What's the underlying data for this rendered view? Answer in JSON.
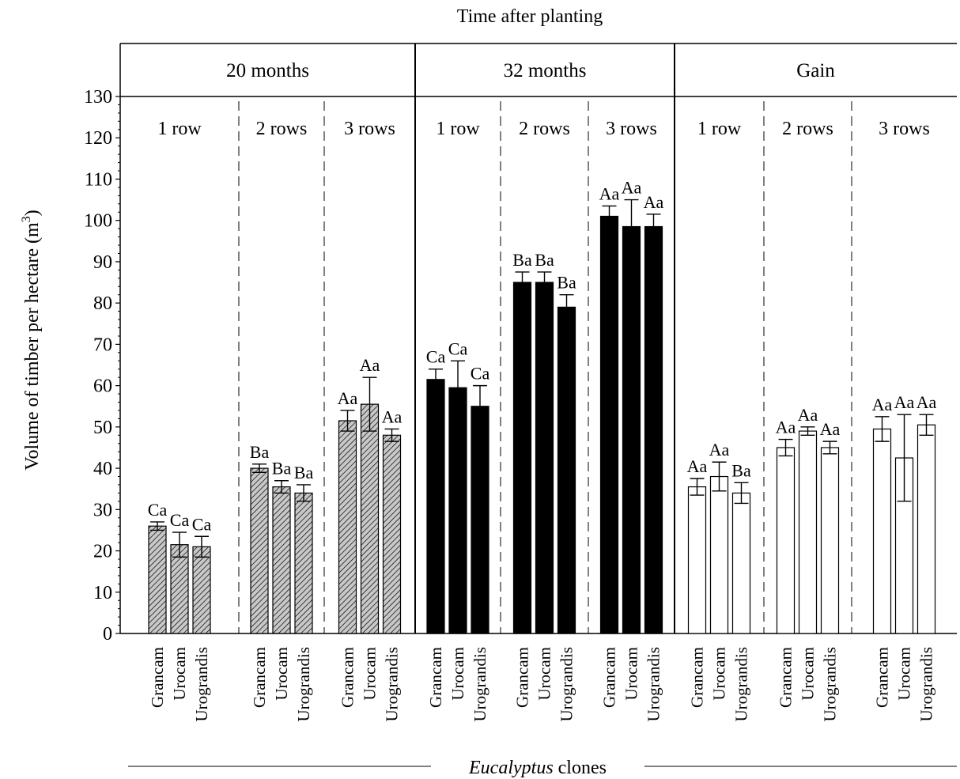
{
  "chart_data": {
    "type": "bar",
    "title": "Time after planting",
    "ylabel": "Volume of timber per hectare (m",
    "ylabel_sup": "3",
    "ylabel_close": ")",
    "xlabel_italic": "Eucalyptus",
    "xlabel_rest": " clones",
    "ylim": [
      0,
      130
    ],
    "ytick_step": 10,
    "clones": [
      "Grancam",
      "Urocam",
      "Urograndis"
    ],
    "groups": [
      {
        "name": "20 months",
        "fill": "hatched",
        "subgroups": [
          {
            "name": "1 row",
            "values": [
              26,
              21.5,
              21
            ],
            "errors": [
              1,
              3,
              2.5
            ],
            "letters": [
              "Ca",
              "Ca",
              "Ca"
            ]
          },
          {
            "name": "2 rows",
            "values": [
              40,
              35.5,
              34
            ],
            "errors": [
              1,
              1.5,
              2
            ],
            "letters": [
              "Ba",
              "Ba",
              "Ba"
            ]
          },
          {
            "name": "3 rows",
            "values": [
              51.5,
              55.5,
              48
            ],
            "errors": [
              2.5,
              6.5,
              1.5
            ],
            "letters": [
              "Aa",
              "Aa",
              "Aa"
            ]
          }
        ]
      },
      {
        "name": "32 months",
        "fill": "black",
        "subgroups": [
          {
            "name": "1 row",
            "values": [
              61.5,
              59.5,
              55
            ],
            "errors": [
              2.5,
              6.5,
              5
            ],
            "letters": [
              "Ca",
              "Ca",
              "Ca"
            ]
          },
          {
            "name": "2 rows",
            "values": [
              85,
              85,
              79
            ],
            "errors": [
              2.5,
              2.5,
              3
            ],
            "letters": [
              "Ba",
              "Ba",
              "Ba"
            ]
          },
          {
            "name": "3 rows",
            "values": [
              101,
              98.5,
              98.5
            ],
            "errors": [
              2.5,
              6.5,
              3
            ],
            "letters": [
              "Aa",
              "Aa",
              "Aa"
            ]
          }
        ]
      },
      {
        "name": "Gain",
        "fill": "white",
        "subgroups": [
          {
            "name": "1 row",
            "values": [
              35.5,
              38,
              34
            ],
            "errors": [
              2,
              3.5,
              2.5
            ],
            "letters": [
              "Aa",
              "Aa",
              "Ba"
            ]
          },
          {
            "name": "2 rows",
            "values": [
              45,
              49,
              45
            ],
            "errors": [
              2,
              1,
              1.5
            ],
            "letters": [
              "Aa",
              "Aa",
              "Aa"
            ]
          },
          {
            "name": "3 rows",
            "values": [
              49.5,
              42.5,
              50.5
            ],
            "errors": [
              3,
              10.5,
              2.5
            ],
            "letters": [
              "Aa",
              "Aa",
              "Aa"
            ]
          }
        ]
      }
    ]
  }
}
